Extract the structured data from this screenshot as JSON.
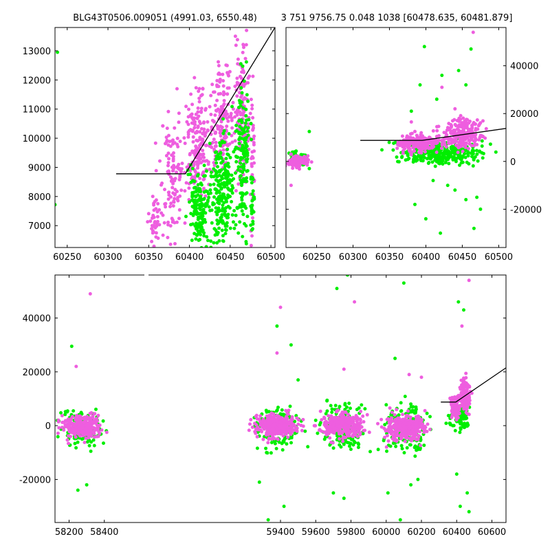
{
  "titles": {
    "left": "BLG43T0506.009051 (4991.03, 6550.48)",
    "right": "3 751 9756.75 0.048 1038 [60478.635, 60481.879]"
  },
  "colors": {
    "series_a": "#ee5edf",
    "series_b": "#00ee00",
    "model": "#000000",
    "axis": "#000000"
  },
  "chart_data": [
    {
      "id": "top-left",
      "type": "scatter",
      "xlim": [
        60235,
        60505
      ],
      "ylim": [
        6250,
        13800
      ],
      "xticks": [
        60250,
        60300,
        60350,
        60400,
        60450,
        60500
      ],
      "yticks": [
        7000,
        8000,
        9000,
        10000,
        11000,
        12000,
        13000
      ],
      "ytick_side": "left",
      "grid": false,
      "model_line": [
        [
          60310,
          8780
        ],
        [
          60395,
          8780
        ],
        [
          60505,
          13800
        ]
      ],
      "series": [
        {
          "color_key": "series_a",
          "clusters": [
            {
              "x": [
                60350,
                60365
              ],
              "y": [
                6300,
                8100
              ],
              "n": 40
            },
            {
              "x": [
                60365,
                60395
              ],
              "y": [
                6300,
                10700
              ],
              "n": 120
            },
            {
              "x": [
                60395,
                60425
              ],
              "y": [
                7600,
                11900
              ],
              "n": 180
            },
            {
              "x": [
                60425,
                60455
              ],
              "y": [
                8600,
                12600
              ],
              "n": 160
            },
            {
              "x": [
                60455,
                60475
              ],
              "y": [
                8000,
                13700
              ],
              "n": 140
            },
            {
              "x": [
                60475,
                60480
              ],
              "y": [
                6600,
                11500
              ],
              "n": 40
            }
          ]
        },
        {
          "color_key": "series_b",
          "clusters": [
            {
              "x": [
                60395,
                60425
              ],
              "y": [
                6250,
                8900
              ],
              "n": 160
            },
            {
              "x": [
                60425,
                60455
              ],
              "y": [
                6300,
                10100
              ],
              "n": 220
            },
            {
              "x": [
                60455,
                60475
              ],
              "y": [
                6500,
                12400
              ],
              "n": 160
            },
            {
              "x": [
                60475,
                60480
              ],
              "y": [
                6700,
                8500
              ],
              "n": 25
            }
          ],
          "points": [
            [
              60238,
              12950
            ],
            [
              60235,
              7720
            ]
          ]
        }
      ]
    },
    {
      "id": "top-right",
      "type": "scatter",
      "xlim": [
        60208,
        60510
      ],
      "ylim": [
        -36000,
        56000
      ],
      "xticks": [
        60250,
        60300,
        60350,
        60400,
        60450,
        60500
      ],
      "yticks": [
        -20000,
        0,
        20000,
        40000
      ],
      "ytick_side": "right",
      "grid": false,
      "model_line": [
        [
          60310,
          8780
        ],
        [
          60395,
          8780
        ],
        [
          60510,
          13800
        ]
      ],
      "series": [
        {
          "color_key": "series_b",
          "clusters": [
            {
              "x": [
                60208,
                60238
              ],
              "y": [
                -3000,
                5500
              ],
              "n": 40
            },
            {
              "x": [
                60360,
                60480
              ],
              "y": [
                -1500,
                8000
              ],
              "n": 320
            }
          ],
          "points": [
            [
              60398,
              48000
            ],
            [
              60422,
              36000
            ],
            [
              60445,
              38000
            ],
            [
              60455,
              32000
            ],
            [
              60462,
              47000
            ],
            [
              60392,
              32000
            ],
            [
              60380,
              21000
            ],
            [
              60385,
              -18000
            ],
            [
              60400,
              -24000
            ],
            [
              60420,
              -30000
            ],
            [
              60440,
              -12000
            ],
            [
              60470,
              -15000
            ],
            [
              60475,
              -20000
            ],
            [
              60466,
              -28000
            ],
            [
              60410,
              -8000
            ],
            [
              60430,
              -10000
            ],
            [
              60240,
              12500
            ],
            [
              60240,
              -3000
            ],
            [
              60415,
              26000
            ],
            [
              60455,
              -16000
            ]
          ]
        },
        {
          "color_key": "series_a",
          "clusters": [
            {
              "x": [
                60208,
                60238
              ],
              "y": [
                -2500,
                2500
              ],
              "n": 100
            },
            {
              "x": [
                60360,
                60420
              ],
              "y": [
                3500,
                11500
              ],
              "n": 220
            },
            {
              "x": [
                60420,
                60480
              ],
              "y": [
                5500,
                18000
              ],
              "n": 240
            }
          ],
          "points": [
            [
              60465,
              54000
            ],
            [
              60422,
              31000
            ],
            [
              60440,
              22000
            ],
            [
              60215,
              -10000
            ],
            [
              60380,
              16500
            ]
          ]
        }
      ]
    },
    {
      "id": "bottom",
      "type": "scatter",
      "xlim": [
        58120,
        60680
      ],
      "ylim": [
        -36000,
        56000
      ],
      "xticks": [
        58200,
        58400,
        59400,
        59600,
        59800,
        60000,
        60200,
        60400,
        60600
      ],
      "yticks": [
        -20000,
        0,
        20000,
        40000
      ],
      "ytick_side": "left",
      "grid": false,
      "model_line": [
        [
          60310,
          8780
        ],
        [
          60395,
          8780
        ],
        [
          60680,
          21500
        ]
      ],
      "series": [
        {
          "color_key": "series_b",
          "clusters": [
            {
              "x": [
                58155,
                58390
              ],
              "y": [
                -8000,
                7000
              ],
              "n": 140
            },
            {
              "x": [
                59250,
                59510
              ],
              "y": [
                -9000,
                8000
              ],
              "n": 180
            },
            {
              "x": [
                59630,
                59870
              ],
              "y": [
                -9000,
                9000
              ],
              "n": 180
            },
            {
              "x": [
                59990,
                60230
              ],
              "y": [
                -10000,
                8000
              ],
              "n": 170
            },
            {
              "x": [
                60360,
                60480
              ],
              "y": [
                -3000,
                10000
              ],
              "n": 90
            }
          ],
          "points": [
            [
              58215,
              29500
            ],
            [
              58250,
              -24000
            ],
            [
              58300,
              -22000
            ],
            [
              59380,
              37000
            ],
            [
              59460,
              30000
            ],
            [
              59280,
              -21000
            ],
            [
              59330,
              -35000
            ],
            [
              59420,
              -30000
            ],
            [
              59780,
              56000
            ],
            [
              59720,
              51000
            ],
            [
              59700,
              -25000
            ],
            [
              59760,
              -27000
            ],
            [
              60100,
              53000
            ],
            [
              60080,
              -35000
            ],
            [
              60140,
              -22000
            ],
            [
              60180,
              -20000
            ],
            [
              60010,
              -25000
            ],
            [
              60410,
              46000
            ],
            [
              60440,
              43000
            ],
            [
              60420,
              -30000
            ],
            [
              60460,
              -25000
            ],
            [
              60470,
              -32000
            ],
            [
              60400,
              -18000
            ],
            [
              59500,
              17000
            ],
            [
              60050,
              25000
            ]
          ]
        },
        {
          "color_key": "series_a",
          "clusters": [
            {
              "x": [
                58155,
                58390
              ],
              "y": [
                -5000,
                4000
              ],
              "n": 260
            },
            {
              "x": [
                59250,
                59510
              ],
              "y": [
                -4500,
                4500
              ],
              "n": 320
            },
            {
              "x": [
                59630,
                59870
              ],
              "y": [
                -5000,
                5000
              ],
              "n": 320
            },
            {
              "x": [
                59990,
                60230
              ],
              "y": [
                -6000,
                4500
              ],
              "n": 300
            },
            {
              "x": [
                60360,
                60420
              ],
              "y": [
                3000,
                11000
              ],
              "n": 110
            },
            {
              "x": [
                60420,
                60480
              ],
              "y": [
                5000,
                17000
              ],
              "n": 130
            }
          ],
          "points": [
            [
              58320,
              49000
            ],
            [
              59400,
              44000
            ],
            [
              59820,
              46000
            ],
            [
              60470,
              54000
            ],
            [
              59380,
              27000
            ],
            [
              58240,
              22000
            ],
            [
              60430,
              37000
            ],
            [
              59760,
              21000
            ],
            [
              60130,
              19000
            ],
            [
              60200,
              18000
            ]
          ]
        }
      ]
    }
  ]
}
